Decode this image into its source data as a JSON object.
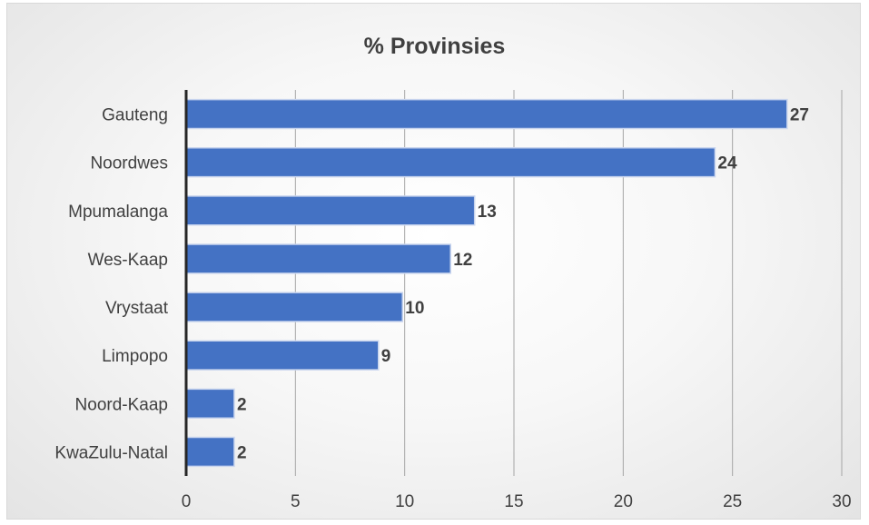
{
  "chart_data": {
    "type": "bar",
    "orientation": "horizontal",
    "title": "% Provinsies",
    "xlabel": "",
    "ylabel": "",
    "categories": [
      "Gauteng",
      "Noordwes",
      "Mpumalanga",
      "Wes-Kaap",
      "Vrystaat",
      "Limpopo",
      "Noord-Kaap",
      "KwaZulu-Natal"
    ],
    "values": [
      27.5,
      24.2,
      13.2,
      12.1,
      9.9,
      8.8,
      2.2,
      2.2
    ],
    "data_labels": [
      "27",
      "24",
      "13",
      "12",
      "10",
      "9",
      "2",
      "2"
    ],
    "xlim": [
      0,
      30
    ],
    "xticks": [
      0,
      5,
      10,
      15,
      20,
      25,
      30
    ],
    "grid": "vertical",
    "legend": "none",
    "bar_color": "#4472c4",
    "bar_border_color": "#c9d5ee"
  }
}
